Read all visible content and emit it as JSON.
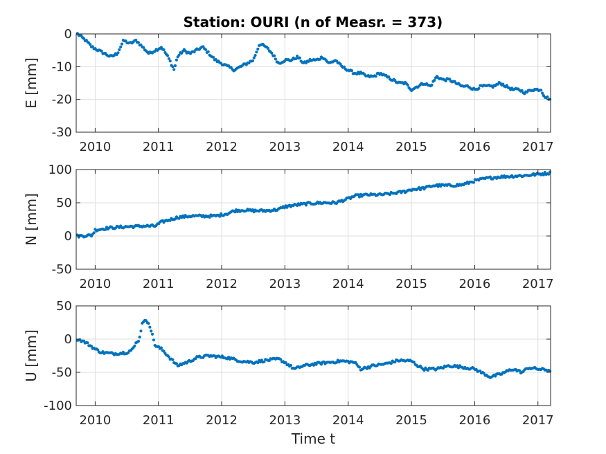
{
  "title": "Station: OURI (n of Measr. = 373)",
  "chart_data": [
    {
      "type": "scatter",
      "name": "E",
      "title": "Station: OURI (n of Measr. = 373)",
      "ylabel": "E [mm]",
      "xlabel": "",
      "xlim": [
        2009.7,
        2017.2
      ],
      "ylim": [
        -30,
        0
      ],
      "yticks": [
        0,
        -10,
        -20,
        -30
      ],
      "xticks": [
        2010,
        2011,
        2012,
        2013,
        2014,
        2015,
        2016,
        2017
      ],
      "grid": true,
      "color": "#0072BD",
      "knots": [
        [
          2009.72,
          0
        ],
        [
          2009.85,
          -2
        ],
        [
          2009.95,
          -4
        ],
        [
          2010.05,
          -5
        ],
        [
          2010.15,
          -6
        ],
        [
          2010.25,
          -7
        ],
        [
          2010.35,
          -6
        ],
        [
          2010.45,
          -2
        ],
        [
          2010.55,
          -3
        ],
        [
          2010.65,
          -2
        ],
        [
          2010.75,
          -4
        ],
        [
          2010.85,
          -6
        ],
        [
          2010.95,
          -5
        ],
        [
          2011.05,
          -4
        ],
        [
          2011.15,
          -7
        ],
        [
          2011.25,
          -11
        ],
        [
          2011.3,
          -7
        ],
        [
          2011.4,
          -5
        ],
        [
          2011.5,
          -6
        ],
        [
          2011.6,
          -5
        ],
        [
          2011.7,
          -4
        ],
        [
          2011.8,
          -6
        ],
        [
          2011.9,
          -8
        ],
        [
          2012.0,
          -9
        ],
        [
          2012.1,
          -10
        ],
        [
          2012.2,
          -11
        ],
        [
          2012.3,
          -10
        ],
        [
          2012.4,
          -9
        ],
        [
          2012.5,
          -8
        ],
        [
          2012.6,
          -3
        ],
        [
          2012.7,
          -4
        ],
        [
          2012.8,
          -6
        ],
        [
          2012.9,
          -9
        ],
        [
          2013.0,
          -8
        ],
        [
          2013.1,
          -8
        ],
        [
          2013.2,
          -7
        ],
        [
          2013.3,
          -9
        ],
        [
          2013.4,
          -8
        ],
        [
          2013.5,
          -8
        ],
        [
          2013.6,
          -7
        ],
        [
          2013.7,
          -9
        ],
        [
          2013.8,
          -8
        ],
        [
          2013.9,
          -10
        ],
        [
          2014.0,
          -11
        ],
        [
          2014.1,
          -12
        ],
        [
          2014.2,
          -12
        ],
        [
          2014.3,
          -13
        ],
        [
          2014.4,
          -13
        ],
        [
          2014.5,
          -12
        ],
        [
          2014.6,
          -13
        ],
        [
          2014.7,
          -14
        ],
        [
          2014.8,
          -15
        ],
        [
          2014.9,
          -15
        ],
        [
          2015.0,
          -17
        ],
        [
          2015.1,
          -16
        ],
        [
          2015.2,
          -15
        ],
        [
          2015.3,
          -16
        ],
        [
          2015.4,
          -13
        ],
        [
          2015.5,
          -14
        ],
        [
          2015.6,
          -14
        ],
        [
          2015.7,
          -15
        ],
        [
          2015.8,
          -16
        ],
        [
          2015.9,
          -16
        ],
        [
          2016.0,
          -17
        ],
        [
          2016.1,
          -16
        ],
        [
          2016.2,
          -16
        ],
        [
          2016.3,
          -16
        ],
        [
          2016.4,
          -15
        ],
        [
          2016.5,
          -16
        ],
        [
          2016.6,
          -17
        ],
        [
          2016.7,
          -17
        ],
        [
          2016.8,
          -18
        ],
        [
          2016.9,
          -17
        ],
        [
          2017.0,
          -17
        ],
        [
          2017.05,
          -17
        ],
        [
          2017.1,
          -19
        ],
        [
          2017.2,
          -20
        ]
      ]
    },
    {
      "type": "scatter",
      "name": "N",
      "title": "",
      "ylabel": "N [mm]",
      "xlabel": "",
      "xlim": [
        2009.7,
        2017.2
      ],
      "ylim": [
        -50,
        100
      ],
      "yticks": [
        100,
        50,
        0,
        -50
      ],
      "xticks": [
        2010,
        2011,
        2012,
        2013,
        2014,
        2015,
        2016,
        2017
      ],
      "grid": true,
      "color": "#0072BD",
      "knots": [
        [
          2009.72,
          0
        ],
        [
          2009.95,
          1
        ],
        [
          2010.0,
          9
        ],
        [
          2010.2,
          12
        ],
        [
          2010.5,
          14
        ],
        [
          2010.8,
          15
        ],
        [
          2010.95,
          15
        ],
        [
          2011.05,
          21
        ],
        [
          2011.2,
          25
        ],
        [
          2011.3,
          28
        ],
        [
          2011.5,
          30
        ],
        [
          2011.7,
          30
        ],
        [
          2011.9,
          30
        ],
        [
          2012.1,
          34
        ],
        [
          2012.2,
          38
        ],
        [
          2012.35,
          39
        ],
        [
          2012.5,
          38
        ],
        [
          2012.7,
          38
        ],
        [
          2012.9,
          40
        ],
        [
          2013.0,
          44
        ],
        [
          2013.2,
          47
        ],
        [
          2013.4,
          49
        ],
        [
          2013.6,
          50
        ],
        [
          2013.8,
          50
        ],
        [
          2014.0,
          56
        ],
        [
          2014.1,
          60
        ],
        [
          2014.3,
          62
        ],
        [
          2014.5,
          62
        ],
        [
          2014.7,
          64
        ],
        [
          2014.9,
          67
        ],
        [
          2015.0,
          70
        ],
        [
          2015.2,
          72
        ],
        [
          2015.35,
          76
        ],
        [
          2015.6,
          76
        ],
        [
          2015.8,
          77
        ],
        [
          2016.0,
          83
        ],
        [
          2016.2,
          87
        ],
        [
          2016.4,
          89
        ],
        [
          2016.6,
          90
        ],
        [
          2016.8,
          91
        ],
        [
          2017.0,
          93
        ],
        [
          2017.2,
          95
        ]
      ]
    },
    {
      "type": "scatter",
      "name": "U",
      "title": "",
      "ylabel": "U [mm]",
      "xlabel": "Time t",
      "xlim": [
        2009.7,
        2017.2
      ],
      "ylim": [
        -100,
        50
      ],
      "yticks": [
        50,
        0,
        -50,
        -100
      ],
      "xticks": [
        2010,
        2011,
        2012,
        2013,
        2014,
        2015,
        2016,
        2017
      ],
      "grid": true,
      "color": "#0072BD",
      "knots": [
        [
          2009.72,
          0
        ],
        [
          2009.85,
          -5
        ],
        [
          2010.0,
          -15
        ],
        [
          2010.1,
          -20
        ],
        [
          2010.3,
          -22
        ],
        [
          2010.5,
          -20
        ],
        [
          2010.6,
          -15
        ],
        [
          2010.65,
          -5
        ],
        [
          2010.7,
          0
        ],
        [
          2010.75,
          28
        ],
        [
          2010.85,
          25
        ],
        [
          2010.95,
          -10
        ],
        [
          2011.05,
          -15
        ],
        [
          2011.15,
          -25
        ],
        [
          2011.3,
          -40
        ],
        [
          2011.5,
          -33
        ],
        [
          2011.6,
          -28
        ],
        [
          2011.8,
          -25
        ],
        [
          2012.0,
          -27
        ],
        [
          2012.1,
          -28
        ],
        [
          2012.3,
          -33
        ],
        [
          2012.5,
          -35
        ],
        [
          2012.7,
          -32
        ],
        [
          2012.9,
          -30
        ],
        [
          2013.0,
          -35
        ],
        [
          2013.15,
          -45
        ],
        [
          2013.3,
          -40
        ],
        [
          2013.5,
          -37
        ],
        [
          2013.7,
          -35
        ],
        [
          2013.9,
          -33
        ],
        [
          2014.1,
          -35
        ],
        [
          2014.2,
          -45
        ],
        [
          2014.4,
          -40
        ],
        [
          2014.6,
          -37
        ],
        [
          2014.8,
          -32
        ],
        [
          2015.0,
          -33
        ],
        [
          2015.1,
          -40
        ],
        [
          2015.2,
          -45
        ],
        [
          2015.4,
          -45
        ],
        [
          2015.6,
          -40
        ],
        [
          2015.8,
          -42
        ],
        [
          2016.0,
          -45
        ],
        [
          2016.1,
          -50
        ],
        [
          2016.25,
          -57
        ],
        [
          2016.4,
          -53
        ],
        [
          2016.6,
          -45
        ],
        [
          2016.75,
          -50
        ],
        [
          2016.85,
          -43
        ],
        [
          2017.0,
          -45
        ],
        [
          2017.2,
          -47
        ]
      ]
    }
  ]
}
